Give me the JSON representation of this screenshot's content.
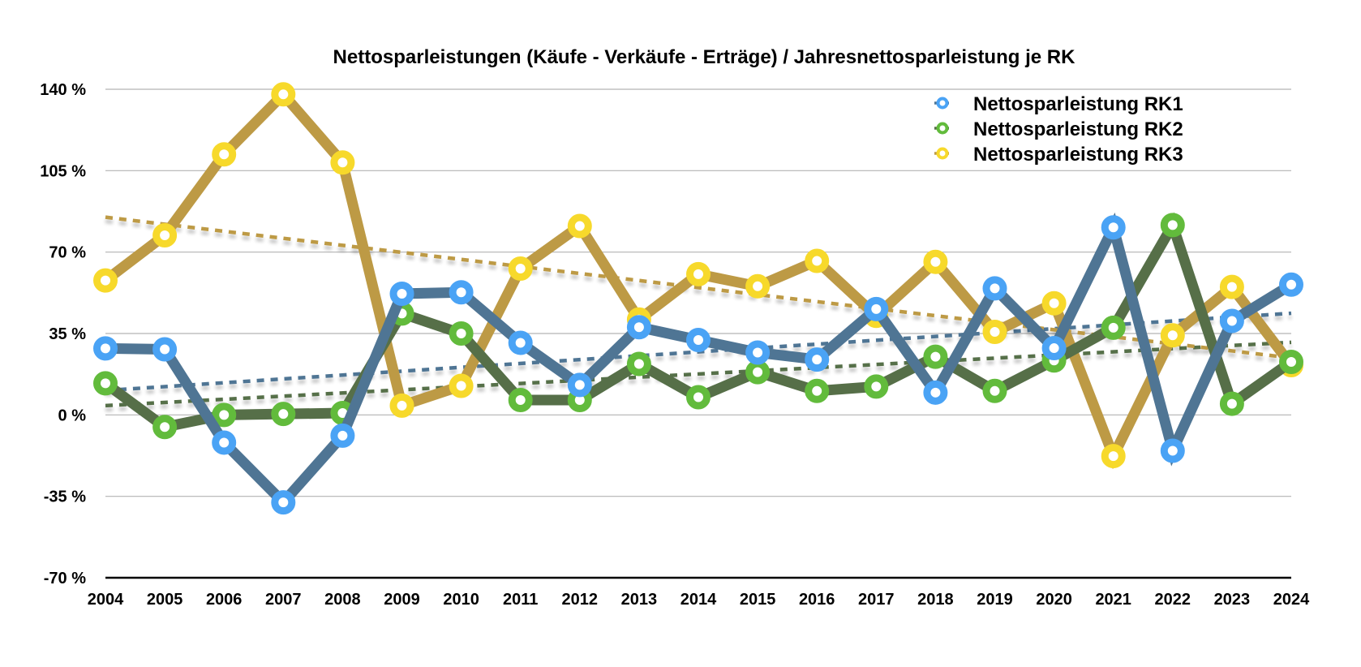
{
  "chart_data": {
    "type": "line",
    "title": "Nettosparleistungen (Käufe - Verkäufe - Erträge) / Jahresnettosparleistung je RK",
    "xlabel": "",
    "ylabel": "",
    "x": [
      "2004",
      "2005",
      "2006",
      "2007",
      "2008",
      "2009",
      "2010",
      "2011",
      "2012",
      "2013",
      "2014",
      "2015",
      "2016",
      "2017",
      "2018",
      "2019",
      "2020",
      "2021",
      "2022",
      "2023",
      "2024"
    ],
    "ylim": [
      -70,
      140
    ],
    "yticks": [
      140,
      105,
      70,
      35,
      0,
      -35,
      -70
    ],
    "ytick_labels": [
      "140 %",
      "105 %",
      "70 %",
      "35 %",
      "0 %",
      "-35 %",
      "-70 %"
    ],
    "grid": true,
    "legend_position": "top-right",
    "series": [
      {
        "name": "Nettosparleistung RK1",
        "line_color": "#4f7594",
        "marker_color": "#4aa3f5",
        "values": [
          28.6,
          28.2,
          -11.9,
          -37.6,
          -8.9,
          52.1,
          52.7,
          31.0,
          12.9,
          37.7,
          32.2,
          26.8,
          23.8,
          45.5,
          9.6,
          54.4,
          28.7,
          80.6,
          -15.4,
          40.4,
          56.0
        ],
        "trend": {
          "type": "linear",
          "start": 10.5,
          "end": 43.7,
          "color": "#4f7594"
        }
      },
      {
        "name": "Nettosparleistung RK2",
        "line_color": "#566f48",
        "marker_color": "#62bb3c",
        "values": [
          13.6,
          -5.2,
          0.0,
          0.4,
          0.8,
          43.6,
          35.0,
          6.4,
          6.4,
          21.9,
          7.6,
          18.4,
          10.3,
          12.2,
          25.0,
          10.3,
          23.4,
          37.5,
          81.6,
          4.8,
          22.8
        ],
        "trend": {
          "type": "linear",
          "start": 4.0,
          "end": 31.2,
          "color": "#566f48"
        }
      },
      {
        "name": "Nettosparleistung RK3",
        "line_color": "#bd9a45",
        "marker_color": "#f7d92b",
        "values": [
          57.8,
          77.2,
          112.0,
          137.8,
          108.5,
          4.0,
          12.5,
          62.9,
          81.2,
          41.0,
          60.5,
          55.3,
          66.2,
          42.6,
          65.8,
          35.7,
          48.0,
          -17.7,
          34.2,
          55.0,
          21.4
        ],
        "trend": {
          "type": "linear",
          "start": 85.0,
          "end": 24.5,
          "color": "#bd9a45"
        }
      }
    ]
  }
}
